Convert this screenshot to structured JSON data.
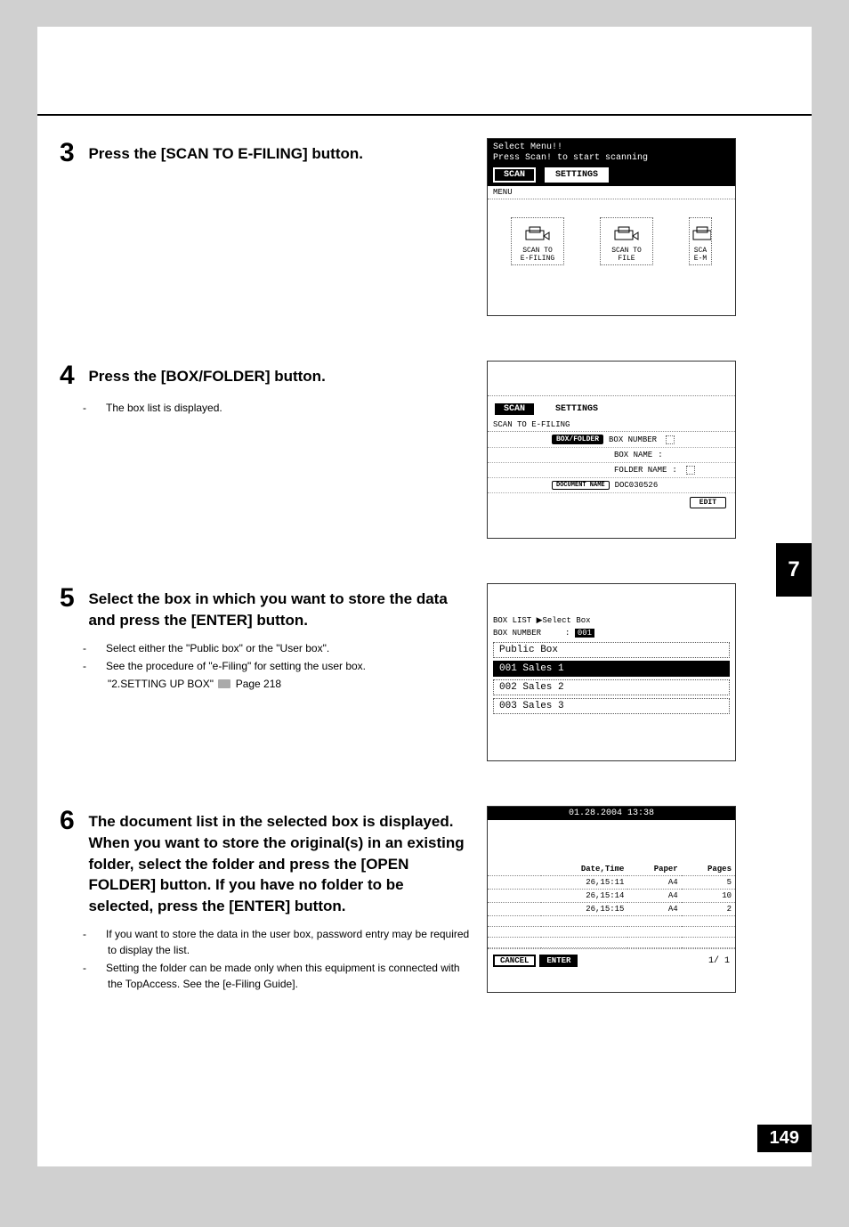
{
  "side_tab": "7",
  "footer_page": "149",
  "steps": {
    "s3": {
      "num": "3",
      "title": "Press the [SCAN TO E-FILING] button.",
      "screenshot": {
        "line1": "Select Menu!!",
        "line2": "Press Scan! to start scanning",
        "tab_scan": "SCAN",
        "tab_settings": "SETTINGS",
        "menu_label": "MENU",
        "icon1": "SCAN TO\nE-FILING",
        "icon2": "SCAN TO\nFILE",
        "icon3": "SCA\nE-M"
      }
    },
    "s4": {
      "num": "4",
      "title": "Press the [BOX/FOLDER] button.",
      "body": [
        "The box list is displayed."
      ],
      "screenshot": {
        "tab_scan": "SCAN",
        "tab_settings": "SETTINGS",
        "section": "SCAN TO E-FILING",
        "btn_boxfolder": "BOX/FOLDER",
        "lbl_boxnumber": "BOX NUMBER",
        "lbl_boxname": "BOX NAME",
        "lbl_foldername": "FOLDER NAME",
        "btn_docname": "DOCUMENT NAME",
        "val_docname": "DOC030526",
        "btn_edit": "EDIT"
      }
    },
    "s5": {
      "num": "5",
      "title": "Select the box in which you want to store the data and press the [ENTER] button.",
      "body": [
        "Select either the \"Public box\" or the \"User box\".",
        "See the procedure of \"e-Filing\" for setting the user box.",
        "\"2.SETTING UP BOX\"  📖  Page 218"
      ],
      "cross_ref": "\"2.SETTING UP BOX\"",
      "cross_ref_page": "Page 218",
      "screenshot": {
        "boxlist": "BOX LIST  ▶Select Box",
        "boxnumber_lbl": "BOX NUMBER",
        "boxnumber_val": "001",
        "items": [
          {
            "label": "Public Box",
            "selected": false
          },
          {
            "label": "001 Sales 1",
            "selected": true
          },
          {
            "label": "002 Sales 2",
            "selected": false
          },
          {
            "label": "003 Sales 3",
            "selected": false
          }
        ]
      }
    },
    "s6": {
      "num": "6",
      "title": "The document list in the selected box is displayed. When you want to store the original(s) in an existing folder, select the folder and press the [OPEN FOLDER] button. If you have no folder to be selected, press the [ENTER] button.",
      "body": [
        "If you want to store the data in the user box, password entry may be required to display the list.",
        "Setting the folder can be made only when this equipment is connected with the TopAccess. See the [e-Filing Guide]."
      ],
      "screenshot": {
        "datetime_header": "01.28.2004 13:38",
        "columns": [
          "",
          "Date,Time",
          "Paper",
          "Pages"
        ],
        "rows": [
          [
            "",
            "26,15:11",
            "A4",
            "5"
          ],
          [
            "",
            "26,15:14",
            "A4",
            "10"
          ],
          [
            "",
            "26,15:15",
            "A4",
            "2"
          ]
        ],
        "btn_cancel": "CANCEL",
        "btn_enter": "ENTER",
        "pager": "1/  1"
      }
    }
  }
}
